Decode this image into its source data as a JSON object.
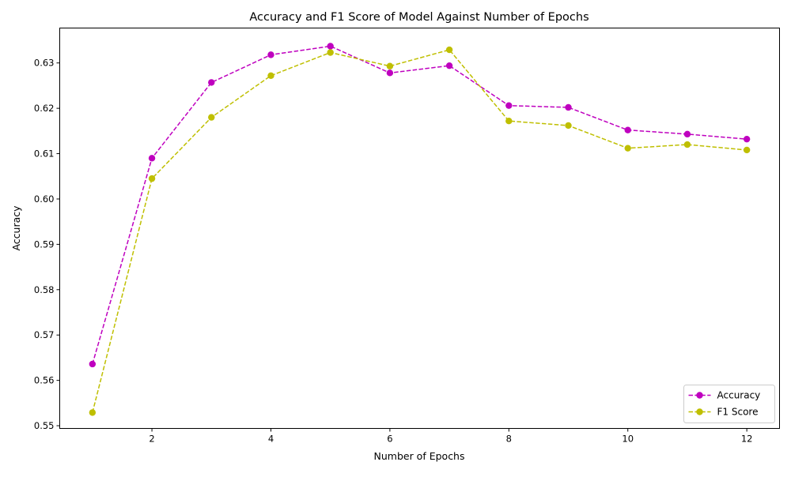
{
  "chart_data": {
    "type": "line",
    "title": "Accuracy and F1 Score of Model Against Number of Epochs",
    "xlabel": "Number of Epochs",
    "ylabel": "Accuracy",
    "xlim": [
      0.45,
      12.55
    ],
    "ylim": [
      0.5494,
      0.6377
    ],
    "xticks": [
      2,
      4,
      6,
      8,
      10,
      12
    ],
    "yticks": [
      0.55,
      0.56,
      0.57,
      0.58,
      0.59,
      0.6,
      0.61,
      0.62,
      0.63
    ],
    "ytick_labels": [
      "0.55",
      "0.56",
      "0.57",
      "0.58",
      "0.59",
      "0.60",
      "0.61",
      "0.62",
      "0.63"
    ],
    "grid": false,
    "legend_position": "lower-right",
    "x": [
      1,
      2,
      3,
      4,
      5,
      6,
      7,
      8,
      9,
      10,
      11,
      12
    ],
    "series": [
      {
        "name": "Accuracy",
        "color": "#bf00bf",
        "linestyle": "dashed",
        "marker": "circle",
        "values": [
          0.5636,
          0.609,
          0.6257,
          0.6318,
          0.6337,
          0.6278,
          0.6294,
          0.6206,
          0.6202,
          0.6152,
          0.6143,
          0.6132
        ]
      },
      {
        "name": "F1 Score",
        "color": "#bfbf00",
        "linestyle": "dashed",
        "marker": "circle",
        "values": [
          0.5529,
          0.6045,
          0.618,
          0.6272,
          0.6323,
          0.6293,
          0.6329,
          0.6172,
          0.6162,
          0.6112,
          0.612,
          0.6108
        ]
      }
    ]
  }
}
